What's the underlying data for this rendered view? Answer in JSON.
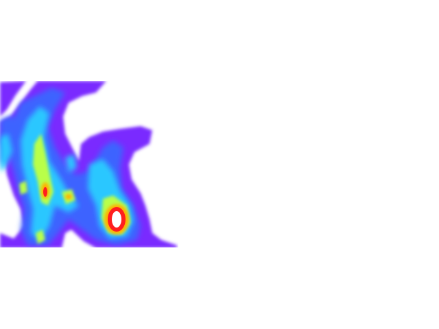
{
  "map": {
    "type": "density-heatmap-tile",
    "colormap": "rainbow",
    "background": "#ffffff",
    "colors": {
      "low": "#7a2bff",
      "mid_low": "#3c63ff",
      "mid": "#29c7ff",
      "mid_high": "#b9ff4a",
      "high": "#ffb000",
      "peak": "#ff1e1e",
      "saturated": "#ffffff"
    },
    "hotspots": [
      {
        "name": "hotspot-lower-right-cluster",
        "intensity": 1.0
      },
      {
        "name": "hotspot-left-ridge",
        "intensity": 0.85
      },
      {
        "name": "hotspot-left-ridge-secondary",
        "intensity": 0.6
      }
    ]
  }
}
